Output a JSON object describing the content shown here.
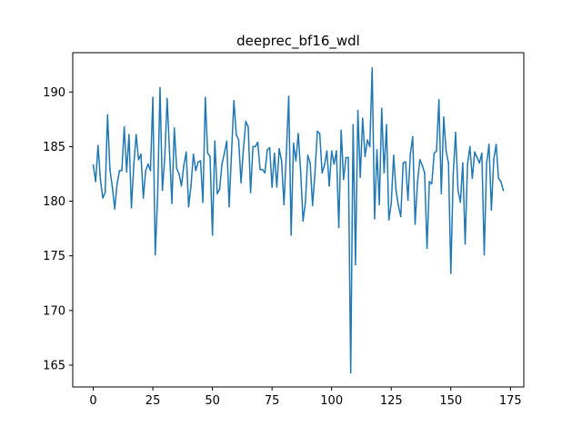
{
  "chart_data": {
    "type": "line",
    "title": "deeprec_bf16_wdl",
    "xlabel": "",
    "ylabel": "",
    "xlim": [
      -8.6,
      180.6
    ],
    "ylim": [
      163.0,
      193.6
    ],
    "x_ticks": [
      0,
      25,
      50,
      75,
      100,
      125,
      150,
      175
    ],
    "y_ticks": [
      165,
      170,
      175,
      180,
      185,
      190
    ],
    "grid": false,
    "legend": "none",
    "line_color": "#1f77b4",
    "series": [
      {
        "x": [
          0,
          1,
          2,
          3,
          4,
          5,
          6,
          7,
          8,
          9,
          10,
          11,
          12,
          13,
          14,
          15,
          16,
          17,
          18,
          19,
          20,
          21,
          22,
          23,
          24,
          25,
          26,
          27,
          28,
          29,
          30,
          31,
          32,
          33,
          34,
          35,
          36,
          37,
          38,
          39,
          40,
          41,
          42,
          43,
          44,
          45,
          46,
          47,
          48,
          49,
          50,
          51,
          52,
          53,
          54,
          55,
          56,
          57,
          58,
          59,
          60,
          61,
          62,
          63,
          64,
          65,
          66,
          67,
          68,
          69,
          70,
          71,
          72,
          73,
          74,
          75,
          76,
          77,
          78,
          79,
          80,
          81,
          82,
          83,
          84,
          85,
          86,
          87,
          88,
          89,
          90,
          91,
          92,
          93,
          94,
          95,
          96,
          97,
          98,
          99,
          100,
          101,
          102,
          103,
          104,
          105,
          106,
          107,
          108,
          109,
          110,
          111,
          112,
          113,
          114,
          115,
          116,
          117,
          118,
          119,
          120,
          121,
          122,
          123,
          124,
          125,
          126,
          127,
          128,
          129,
          130,
          131,
          132,
          133,
          134,
          135,
          136,
          137,
          138,
          139,
          140,
          141,
          142,
          143,
          144,
          145,
          146,
          147,
          148,
          149,
          150,
          151,
          152,
          153,
          154,
          155,
          156,
          157,
          158,
          159,
          160,
          161,
          162,
          163,
          164,
          165,
          166,
          167,
          168,
          169,
          170,
          171,
          172
        ],
        "values": [
          183.3,
          181.8,
          185.1,
          182.0,
          180.3,
          180.8,
          187.9,
          182.9,
          181.3,
          179.3,
          181.6,
          182.8,
          182.8,
          186.8,
          182.7,
          186.1,
          179.4,
          183.3,
          186.1,
          183.8,
          184.3,
          180.3,
          182.8,
          183.4,
          182.8,
          189.5,
          175.1,
          180.4,
          190.4,
          181.0,
          184.0,
          189.4,
          184.5,
          179.8,
          186.7,
          183.0,
          182.5,
          181.4,
          183.3,
          184.5,
          179.5,
          181.4,
          184.3,
          182.8,
          183.6,
          183.7,
          179.9,
          189.5,
          184.4,
          184.1,
          176.9,
          185.5,
          180.7,
          181.1,
          183.4,
          184.4,
          185.5,
          179.5,
          184.4,
          189.2,
          186.1,
          185.6,
          181.7,
          184.8,
          187.3,
          186.8,
          180.8,
          185.0,
          185.0,
          185.4,
          182.9,
          182.9,
          182.6,
          184.7,
          184.9,
          181.3,
          184.4,
          181.3,
          184.8,
          183.7,
          179.7,
          184.4,
          189.6,
          176.9,
          185.3,
          183.7,
          186.2,
          182.7,
          178.2,
          179.9,
          184.2,
          183.5,
          179.6,
          182.6,
          186.4,
          186.2,
          182.6,
          183.3,
          184.6,
          181.4,
          184.6,
          183.4,
          184.6,
          177.6,
          186.5,
          182.0,
          184.0,
          184.0,
          164.3,
          187.0,
          174.2,
          188.3,
          182.2,
          187.6,
          184.1,
          185.6,
          185.0,
          192.2,
          178.4,
          184.7,
          179.7,
          188.5,
          182.6,
          187.0,
          178.3,
          179.8,
          184.2,
          181.0,
          179.6,
          178.6,
          183.5,
          183.6,
          180.1,
          184.3,
          185.9,
          177.9,
          181.7,
          183.8,
          183.3,
          182.6,
          175.7,
          181.8,
          181.6,
          184.4,
          184.6,
          189.3,
          180.7,
          187.7,
          184.6,
          183.5,
          173.4,
          182.5,
          186.3,
          181.0,
          179.9,
          183.5,
          176.1,
          183.4,
          185.0,
          182.1,
          184.5,
          184.0,
          183.5,
          184.4,
          175.1,
          183.5,
          185.2,
          179.2,
          183.8,
          185.2,
          182.1,
          181.8,
          181.0
        ]
      }
    ]
  }
}
